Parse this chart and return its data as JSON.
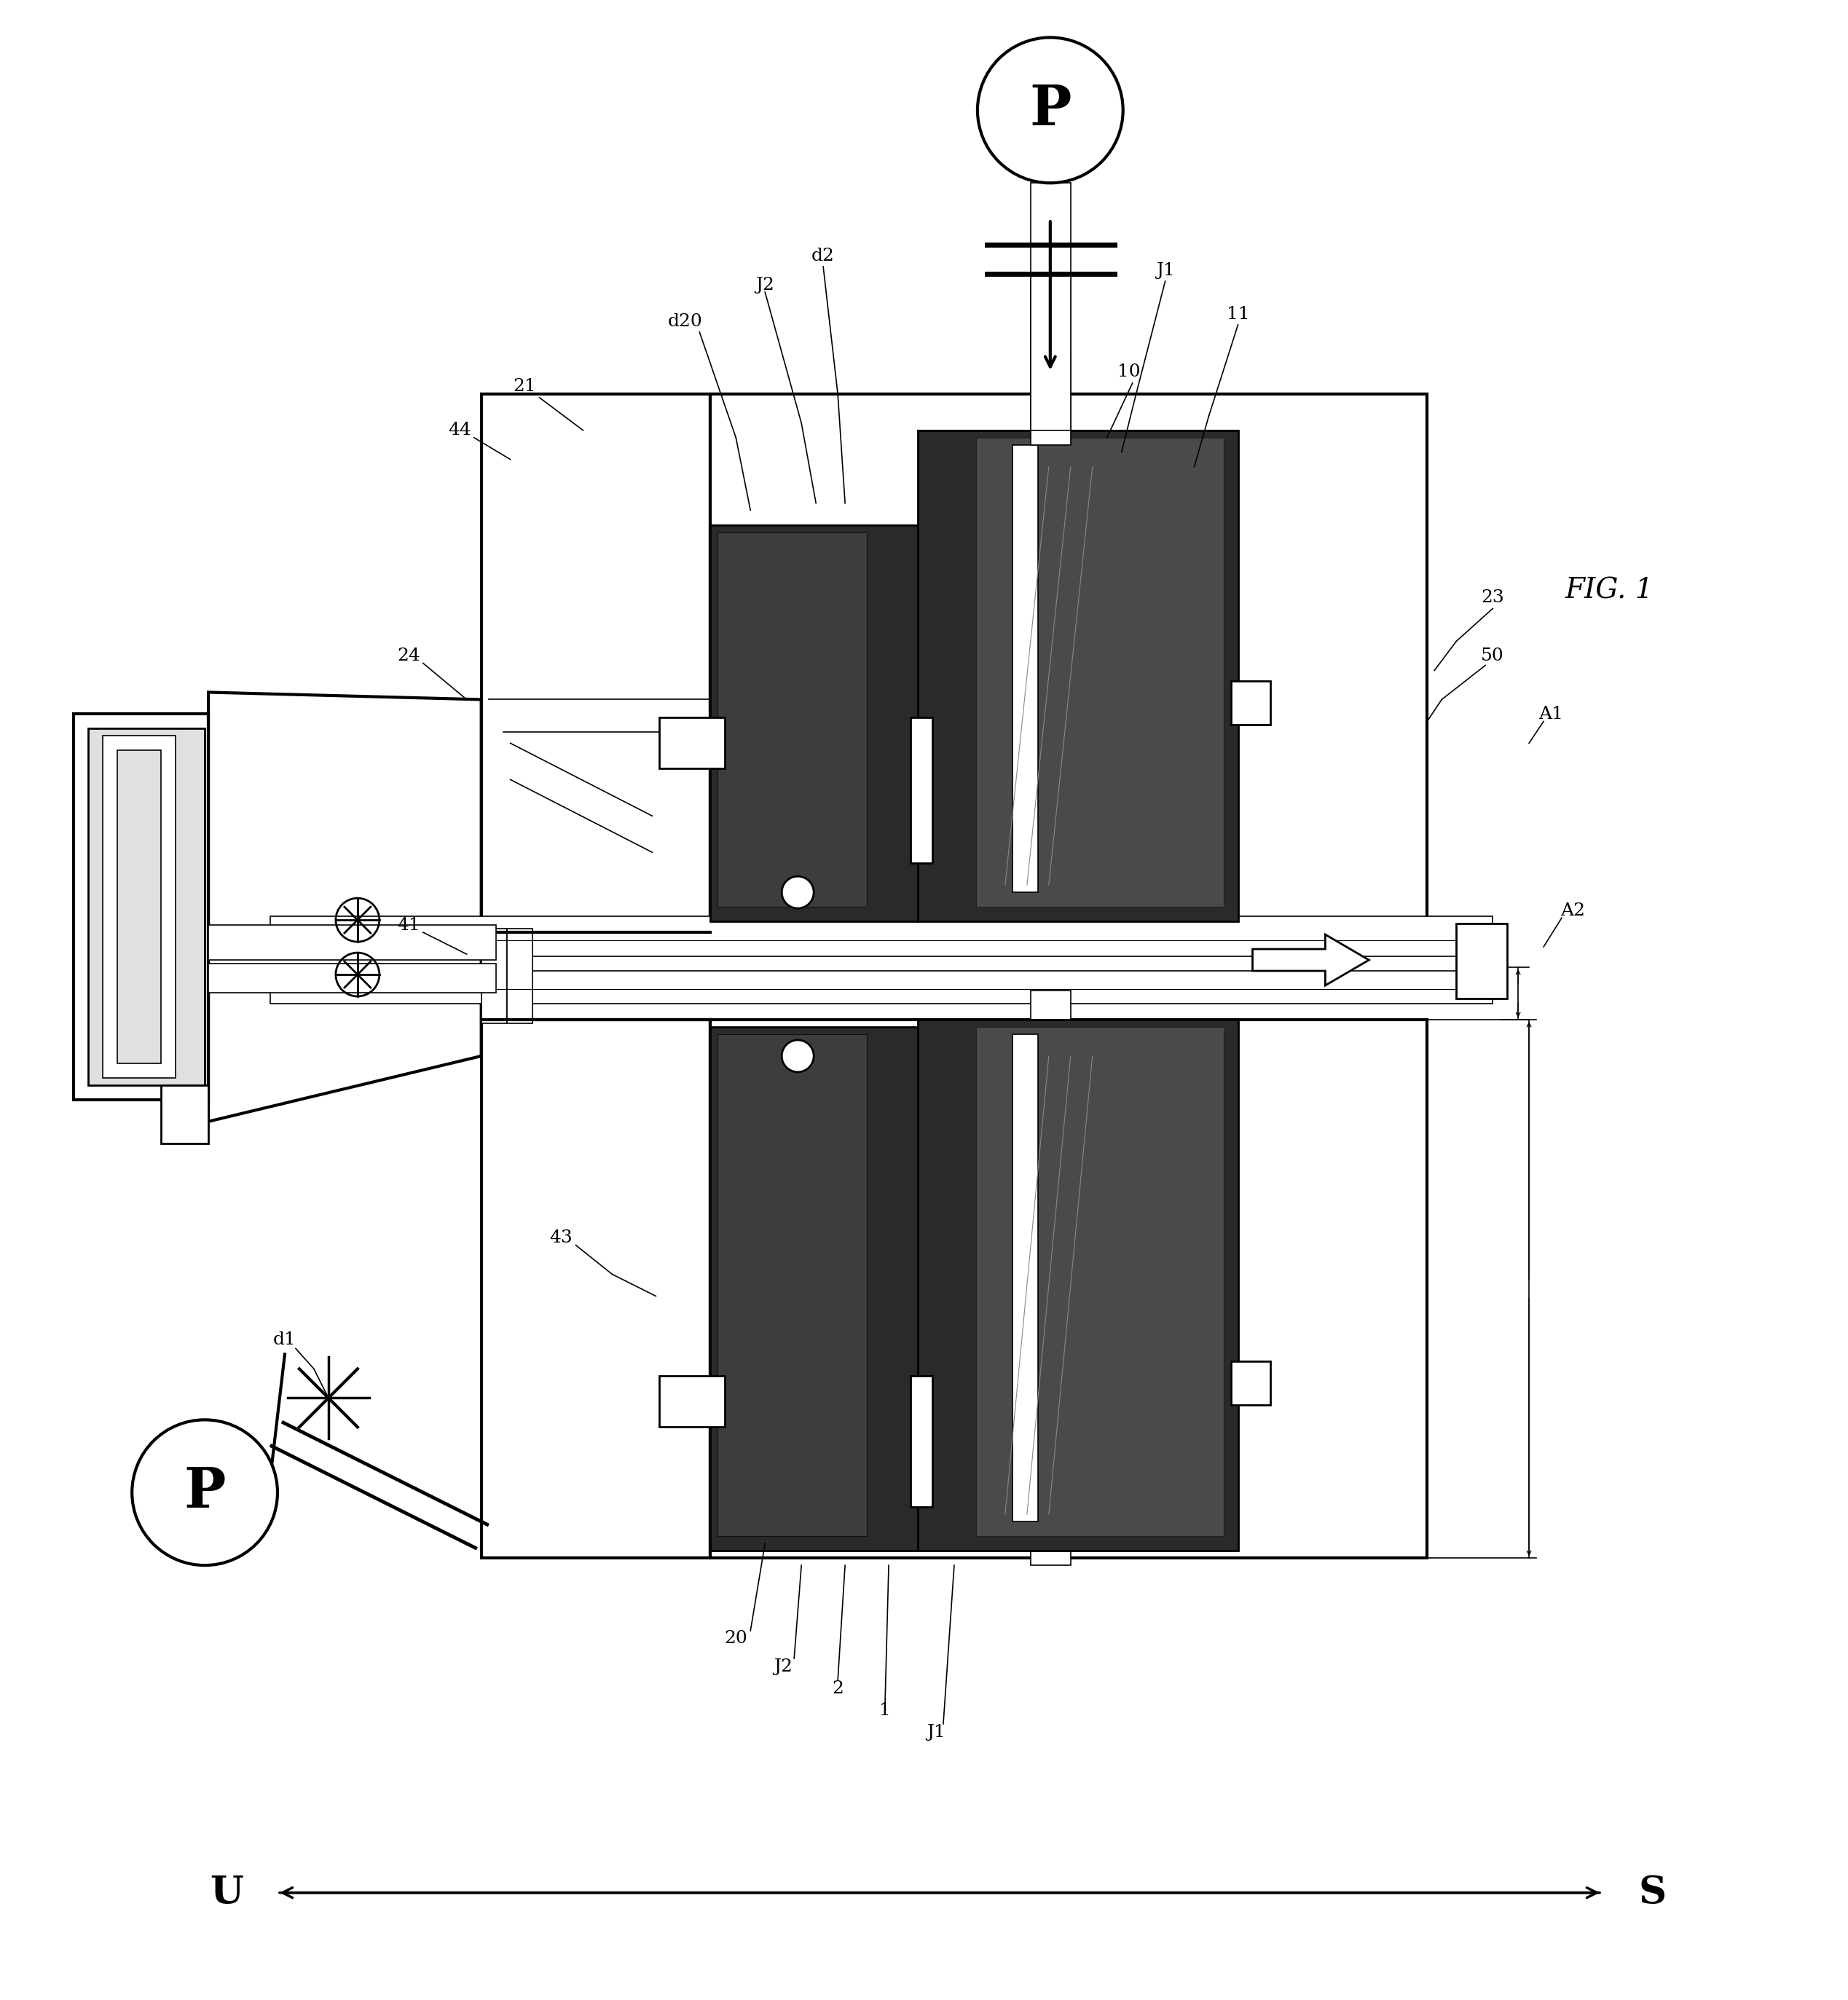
{
  "bg_color": "#ffffff",
  "dark_fill": "#2a2a2a",
  "dark2_fill": "#3d3d3d",
  "mid_fill": "#7a7a7a",
  "white_fill": "#ffffff",
  "light_gray": "#e0e0e0",
  "fig_label": "FIG. 1",
  "U_label": "U",
  "S_label": "S",
  "lw_main": 2.0,
  "lw_thick": 3.0,
  "lw_thin": 1.2,
  "label_fs": 18
}
